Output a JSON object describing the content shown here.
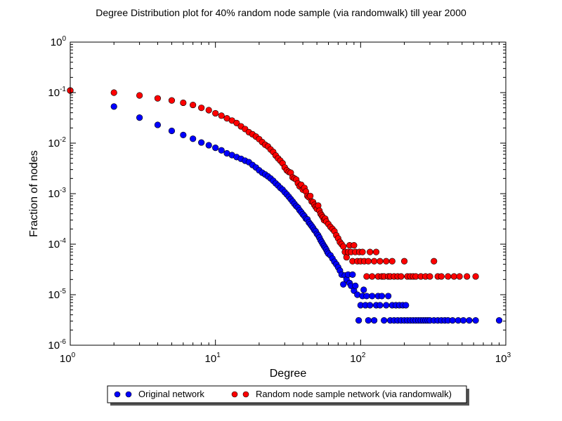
{
  "chart_data": {
    "type": "scatter",
    "title": "Degree Distribution plot for 40% random node sample (via randomwalk) till year 2000",
    "xlabel": "Degree",
    "ylabel": "Fraction of nodes",
    "xscale": "log",
    "yscale": "log",
    "xlim": [
      1,
      1000
    ],
    "ylim": [
      1e-06,
      1
    ],
    "x_ticks": [
      {
        "value": 1,
        "base": "10",
        "exp": "0"
      },
      {
        "value": 10,
        "base": "10",
        "exp": "1"
      },
      {
        "value": 100,
        "base": "10",
        "exp": "2"
      },
      {
        "value": 1000,
        "base": "10",
        "exp": "3"
      }
    ],
    "y_ticks": [
      {
        "value": 1e-06,
        "base": "10",
        "exp": "-6"
      },
      {
        "value": 1e-05,
        "base": "10",
        "exp": "-5"
      },
      {
        "value": 0.0001,
        "base": "10",
        "exp": "-4"
      },
      {
        "value": 0.001,
        "base": "10",
        "exp": "-3"
      },
      {
        "value": 0.01,
        "base": "10",
        "exp": "-2"
      },
      {
        "value": 0.1,
        "base": "10",
        "exp": "-1"
      },
      {
        "value": 1,
        "base": "10",
        "exp": "0"
      }
    ],
    "legend_position": "below plot, centered",
    "grid": false,
    "series": [
      {
        "name": "Original network",
        "color": "#0000ff",
        "points": [
          [
            1,
            0.11
          ],
          [
            2,
            0.053
          ],
          [
            3,
            0.032
          ],
          [
            4,
            0.023
          ],
          [
            5,
            0.0175
          ],
          [
            6,
            0.0145
          ],
          [
            7,
            0.0122
          ],
          [
            8,
            0.0103
          ],
          [
            9,
            0.0091
          ],
          [
            10,
            0.0081
          ],
          [
            11,
            0.0072
          ],
          [
            12,
            0.0063
          ],
          [
            13,
            0.0058
          ],
          [
            14,
            0.0053
          ],
          [
            15,
            0.0049
          ],
          [
            16,
            0.0045
          ],
          [
            17,
            0.0042
          ],
          [
            18,
            0.0037
          ],
          [
            19,
            0.0033
          ],
          [
            20,
            0.0029
          ],
          [
            21,
            0.0026
          ],
          [
            22,
            0.0024
          ],
          [
            23,
            0.0022
          ],
          [
            24,
            0.002
          ],
          [
            25,
            0.0018
          ],
          [
            26,
            0.0016
          ],
          [
            27,
            0.00145
          ],
          [
            28,
            0.0013
          ],
          [
            29,
            0.0012
          ],
          [
            30,
            0.00107
          ],
          [
            31,
            0.00097
          ],
          [
            32,
            0.00087
          ],
          [
            33,
            0.00078
          ],
          [
            34,
            0.0007
          ],
          [
            35,
            0.00063
          ],
          [
            36,
            0.00057
          ],
          [
            37,
            0.00053
          ],
          [
            38,
            0.00047
          ],
          [
            39,
            0.00043
          ],
          [
            40,
            0.00039
          ],
          [
            41,
            0.00036
          ],
          [
            42,
            0.00032
          ],
          [
            43,
            0.00031
          ],
          [
            44,
            0.00027
          ],
          [
            45,
            0.00025
          ],
          [
            46,
            0.00023
          ],
          [
            47,
            0.00021
          ],
          [
            48,
            0.00019
          ],
          [
            49,
            0.00018
          ],
          [
            50,
            0.00016
          ],
          [
            51,
            0.00015
          ],
          [
            52,
            0.000135
          ],
          [
            53,
            0.00012
          ],
          [
            54,
            0.00011
          ],
          [
            55,
            0.0001
          ],
          [
            56,
            9.2e-05
          ],
          [
            57,
            8.5e-05
          ],
          [
            58,
            7.8e-05
          ],
          [
            59,
            7e-05
          ],
          [
            60,
            6.5e-05
          ],
          [
            62,
            6e-05
          ],
          [
            64,
            5.2e-05
          ],
          [
            66,
            4.5e-05
          ],
          [
            68,
            4e-05
          ],
          [
            70,
            3.5e-05
          ],
          [
            72,
            3e-05
          ],
          [
            74,
            2.5e-05
          ],
          [
            76,
            1.6e-05
          ],
          [
            78,
            2.4e-05
          ],
          [
            80,
            2e-05
          ],
          [
            82,
            2.5e-05
          ],
          [
            84,
            1.7e-05
          ],
          [
            86,
            1.5e-05
          ],
          [
            88,
            2.5e-05
          ],
          [
            90,
            1.2e-05
          ],
          [
            92,
            1.5e-05
          ],
          [
            95,
            1e-05
          ],
          [
            97,
            3.1e-06
          ],
          [
            100,
            6.2e-06
          ],
          [
            103,
            9.4e-06
          ],
          [
            105,
            1.25e-05
          ],
          [
            108,
            6.2e-06
          ],
          [
            110,
            9.4e-06
          ],
          [
            113,
            3.1e-06
          ],
          [
            116,
            6.2e-06
          ],
          [
            120,
            9.4e-06
          ],
          [
            124,
            3.1e-06
          ],
          [
            128,
            6.2e-06
          ],
          [
            132,
            9.4e-06
          ],
          [
            136,
            6.2e-06
          ],
          [
            140,
            9.4e-06
          ],
          [
            145,
            3.1e-06
          ],
          [
            150,
            6.2e-06
          ],
          [
            155,
            9.4e-06
          ],
          [
            160,
            3.1e-06
          ],
          [
            165,
            6.2e-06
          ],
          [
            170,
            3.1e-06
          ],
          [
            175,
            6.2e-06
          ],
          [
            180,
            3.1e-06
          ],
          [
            185,
            6.2e-06
          ],
          [
            190,
            3.1e-06
          ],
          [
            195,
            6.2e-06
          ],
          [
            200,
            3.1e-06
          ],
          [
            205,
            6.2e-06
          ],
          [
            210,
            3.1e-06
          ],
          [
            220,
            3.1e-06
          ],
          [
            230,
            3.1e-06
          ],
          [
            240,
            3.1e-06
          ],
          [
            250,
            3.1e-06
          ],
          [
            260,
            3.1e-06
          ],
          [
            270,
            3.1e-06
          ],
          [
            280,
            3.1e-06
          ],
          [
            290,
            3.1e-06
          ],
          [
            300,
            3.1e-06
          ],
          [
            320,
            3.1e-06
          ],
          [
            340,
            3.1e-06
          ],
          [
            360,
            3.1e-06
          ],
          [
            380,
            3.1e-06
          ],
          [
            400,
            3.1e-06
          ],
          [
            430,
            3.1e-06
          ],
          [
            470,
            3.1e-06
          ],
          [
            510,
            3.1e-06
          ],
          [
            560,
            3.1e-06
          ],
          [
            620,
            3.1e-06
          ],
          [
            900,
            3.1e-06
          ]
        ]
      },
      {
        "name": "Random node sample network (via randomwalk)",
        "color": "#ff0000",
        "points": [
          [
            1,
            0.11
          ],
          [
            2,
            0.1
          ],
          [
            3,
            0.088
          ],
          [
            4,
            0.077
          ],
          [
            5,
            0.07
          ],
          [
            6,
            0.063
          ],
          [
            7,
            0.057
          ],
          [
            8,
            0.05
          ],
          [
            9,
            0.045
          ],
          [
            10,
            0.039
          ],
          [
            11,
            0.035
          ],
          [
            12,
            0.031
          ],
          [
            13,
            0.028
          ],
          [
            14,
            0.025
          ],
          [
            15,
            0.0215
          ],
          [
            16,
            0.019
          ],
          [
            17,
            0.0165
          ],
          [
            18,
            0.015
          ],
          [
            19,
            0.0135
          ],
          [
            20,
            0.012
          ],
          [
            21,
            0.0105
          ],
          [
            22,
            0.0093
          ],
          [
            23,
            0.0086
          ],
          [
            24,
            0.0075
          ],
          [
            25,
            0.0067
          ],
          [
            26,
            0.0057
          ],
          [
            27,
            0.005
          ],
          [
            28,
            0.0045
          ],
          [
            29,
            0.004
          ],
          [
            30,
            0.0033
          ],
          [
            31,
            0.0029
          ],
          [
            32,
            0.0027
          ],
          [
            33,
            0.0026
          ],
          [
            34,
            0.0021
          ],
          [
            35,
            0.002
          ],
          [
            36,
            0.0019
          ],
          [
            37,
            0.0016
          ],
          [
            38,
            0.0014
          ],
          [
            39,
            0.0015
          ],
          [
            40,
            0.0012
          ],
          [
            41,
            0.0013
          ],
          [
            42,
            0.0011
          ],
          [
            43,
            0.0009
          ],
          [
            44,
            0.00085
          ],
          [
            45,
            0.0009
          ],
          [
            46,
            0.0007
          ],
          [
            47,
            0.00068
          ],
          [
            48,
            0.0006
          ],
          [
            49,
            0.00055
          ],
          [
            50,
            0.0005
          ],
          [
            51,
            0.00058
          ],
          [
            52,
            0.00046
          ],
          [
            53,
            0.0004
          ],
          [
            54,
            0.00037
          ],
          [
            55,
            0.00034
          ],
          [
            56,
            0.0003
          ],
          [
            57,
            0.00032
          ],
          [
            58,
            0.00028
          ],
          [
            60,
            0.00025
          ],
          [
            62,
            0.00022
          ],
          [
            64,
            0.0002
          ],
          [
            66,
            0.00018
          ],
          [
            68,
            0.00015
          ],
          [
            70,
            0.00013
          ],
          [
            72,
            0.00011
          ],
          [
            74,
            0.0001
          ],
          [
            76,
            9e-05
          ],
          [
            78,
            7e-05
          ],
          [
            80,
            5.5e-05
          ],
          [
            82,
            7e-05
          ],
          [
            84,
            9.5e-05
          ],
          [
            86,
            7e-05
          ],
          [
            88,
            4.6e-05
          ],
          [
            90,
            9.5e-05
          ],
          [
            92,
            7e-05
          ],
          [
            95,
            4.6e-05
          ],
          [
            98,
            7e-05
          ],
          [
            100,
            4.6e-05
          ],
          [
            103,
            7e-05
          ],
          [
            106,
            4.6e-05
          ],
          [
            110,
            2.3e-05
          ],
          [
            113,
            4.6e-05
          ],
          [
            116,
            7e-05
          ],
          [
            120,
            2.3e-05
          ],
          [
            124,
            4.6e-05
          ],
          [
            128,
            7e-05
          ],
          [
            132,
            2.3e-05
          ],
          [
            136,
            4.6e-05
          ],
          [
            140,
            2.3e-05
          ],
          [
            145,
            2.3e-05
          ],
          [
            150,
            4.6e-05
          ],
          [
            155,
            2.3e-05
          ],
          [
            160,
            2.3e-05
          ],
          [
            165,
            4.6e-05
          ],
          [
            170,
            2.3e-05
          ],
          [
            180,
            2.3e-05
          ],
          [
            190,
            2.3e-05
          ],
          [
            200,
            4.6e-05
          ],
          [
            210,
            2.3e-05
          ],
          [
            220,
            2.3e-05
          ],
          [
            230,
            2.3e-05
          ],
          [
            240,
            2.3e-05
          ],
          [
            260,
            2.3e-05
          ],
          [
            280,
            2.3e-05
          ],
          [
            300,
            2.3e-05
          ],
          [
            320,
            4.6e-05
          ],
          [
            340,
            2.3e-05
          ],
          [
            360,
            2.3e-05
          ],
          [
            400,
            2.3e-05
          ],
          [
            440,
            2.3e-05
          ],
          [
            480,
            2.3e-05
          ],
          [
            540,
            2.3e-05
          ],
          [
            620,
            2.3e-05
          ]
        ]
      }
    ]
  }
}
